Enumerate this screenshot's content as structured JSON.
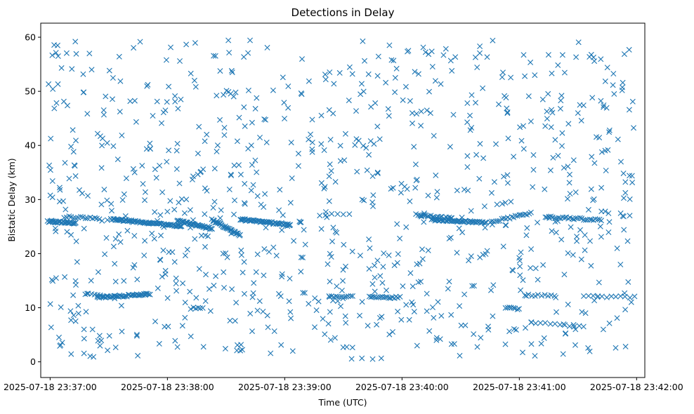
{
  "chart_data": {
    "type": "scatter",
    "title": "Detections in Delay",
    "xlabel": "Time (UTC)",
    "ylabel": "Bistatic Delay (km)",
    "marker": "x",
    "color": "#1f77b4",
    "grid": false,
    "legend": "none",
    "xlim_minutes": [
      -0.08,
      5.07
    ],
    "x_origin": "2025-07-18 23:37:00",
    "x_ticks": [
      {
        "value": 0,
        "label": "2025-07-18 23:37:00"
      },
      {
        "value": 1,
        "label": "2025-07-18 23:38:00"
      },
      {
        "value": 2,
        "label": "2025-07-18 23:39:00"
      },
      {
        "value": 3,
        "label": "2025-07-18 23:40:00"
      },
      {
        "value": 4,
        "label": "2025-07-18 23:41:00"
      },
      {
        "value": 5,
        "label": "2025-07-18 23:42:00"
      }
    ],
    "ylim": [
      -2.9,
      62.6
    ],
    "y_ticks": [
      {
        "value": 0,
        "label": "0"
      },
      {
        "value": 10,
        "label": "10"
      },
      {
        "value": 20,
        "label": "20"
      },
      {
        "value": 30,
        "label": "30"
      },
      {
        "value": 40,
        "label": "40"
      },
      {
        "value": 50,
        "label": "50"
      },
      {
        "value": 60,
        "label": "60"
      }
    ],
    "series": [
      {
        "name": "detections",
        "x_range_minutes": [
          -0.02,
          4.98
        ],
        "noise_points": 900,
        "noise_y_range": [
          0.5,
          59.5
        ],
        "tracks": [
          {
            "x": [
              -0.02,
              0.22
            ],
            "y": [
              26.0,
              25.6
            ],
            "points": 30
          },
          {
            "x": [
              0.12,
              0.42
            ],
            "y": [
              26.8,
              26.5
            ],
            "points": 16
          },
          {
            "x": [
              0.52,
              1.12
            ],
            "y": [
              26.4,
              25.0
            ],
            "points": 75
          },
          {
            "x": [
              1.08,
              1.38
            ],
            "y": [
              26.1,
              24.6
            ],
            "points": 40
          },
          {
            "x": [
              1.38,
              1.62
            ],
            "y": [
              26.2,
              23.4
            ],
            "points": 35
          },
          {
            "x": [
              1.62,
              2.05
            ],
            "y": [
              26.3,
              25.3
            ],
            "points": 55
          },
          {
            "x": [
              2.3,
              2.55
            ],
            "y": [
              27.2,
              27.2
            ],
            "points": 6
          },
          {
            "x": [
              3.12,
              3.42
            ],
            "y": [
              27.2,
              26.5
            ],
            "points": 20
          },
          {
            "x": [
              3.25,
              3.72
            ],
            "y": [
              26.3,
              25.7
            ],
            "points": 50
          },
          {
            "x": [
              3.75,
              4.1
            ],
            "y": [
              25.8,
              27.5
            ],
            "points": 22
          },
          {
            "x": [
              4.22,
              4.7
            ],
            "y": [
              26.8,
              26.2
            ],
            "points": 30
          },
          {
            "x": [
              0.4,
              0.85
            ],
            "y": [
              11.9,
              12.5
            ],
            "points": 45
          },
          {
            "x": [
              0.3,
              0.48
            ],
            "y": [
              12.6,
              12.1
            ],
            "points": 8
          },
          {
            "x": [
              2.38,
              2.58
            ],
            "y": [
              12.1,
              12.1
            ],
            "points": 12
          },
          {
            "x": [
              2.72,
              2.98
            ],
            "y": [
              12.0,
              11.9
            ],
            "points": 18
          },
          {
            "x": [
              1.2,
              1.3
            ],
            "y": [
              9.9,
              9.9
            ],
            "points": 6
          },
          {
            "x": [
              3.88,
              4.0
            ],
            "y": [
              10.0,
              9.8
            ],
            "points": 8
          },
          {
            "x": [
              4.05,
              4.3
            ],
            "y": [
              12.3,
              12.3
            ],
            "points": 10
          },
          {
            "x": [
              4.55,
              4.98
            ],
            "y": [
              12.1,
              12.0
            ],
            "points": 12
          },
          {
            "x": [
              4.1,
              4.55
            ],
            "y": [
              7.3,
              6.5
            ],
            "points": 12
          }
        ]
      }
    ]
  }
}
